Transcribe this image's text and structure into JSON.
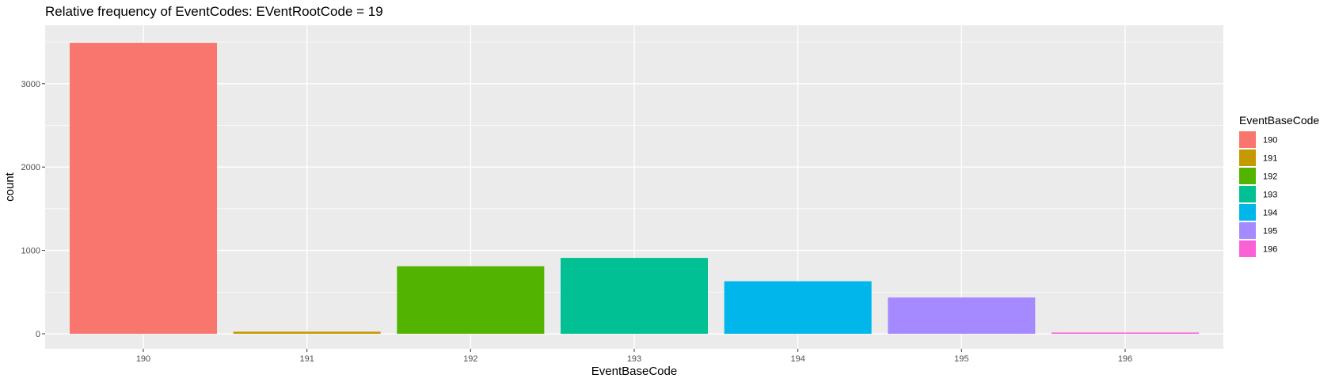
{
  "chart_data": {
    "type": "bar",
    "title": "Relative frequency of EventCodes: EVentRootCode = 19",
    "xlabel": "EventBaseCode",
    "ylabel": "count",
    "categories": [
      "190",
      "191",
      "192",
      "193",
      "194",
      "195",
      "196"
    ],
    "values": [
      3490,
      25,
      810,
      910,
      630,
      435,
      15
    ],
    "colors": [
      "#F8766D",
      "#C49A00",
      "#53B400",
      "#00C094",
      "#00B6EB",
      "#A58AFF",
      "#FB61D7"
    ],
    "ylim": [
      -180,
      3700
    ],
    "yticks": [
      0,
      1000,
      2000,
      3000
    ],
    "ytick_labels": [
      "0",
      "1000",
      "2000",
      "3000"
    ],
    "grid": true,
    "panel_color": "#EBEBEB",
    "grid_color": "#FFFFFF",
    "legend": {
      "title": "EventBaseCode",
      "placement": "right",
      "labels": [
        "190",
        "191",
        "192",
        "193",
        "194",
        "195",
        "196"
      ]
    }
  }
}
